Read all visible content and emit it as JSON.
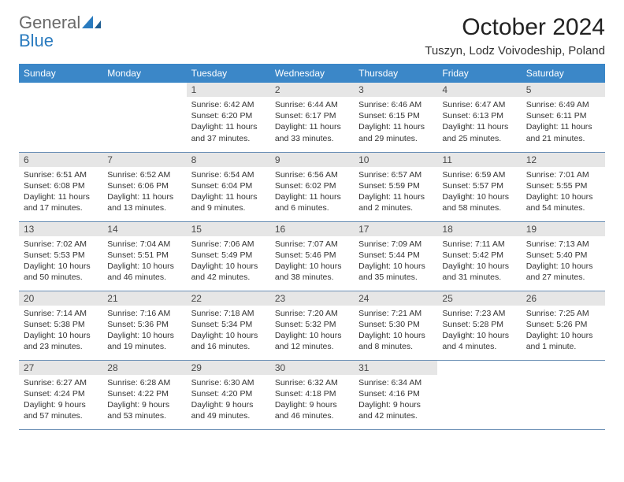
{
  "logo": {
    "general": "General",
    "blue": "Blue"
  },
  "title": "October 2024",
  "location": "Tuszyn, Lodz Voivodeship, Poland",
  "colors": {
    "header_bg": "#3b87c8",
    "header_text": "#ffffff",
    "daynum_bg": "#e6e6e6",
    "daynum_text": "#4a4a4a",
    "row_border": "#6a8fb5",
    "logo_gray": "#6a6a6a",
    "logo_blue": "#2a7bbf"
  },
  "weekdays": [
    "Sunday",
    "Monday",
    "Tuesday",
    "Wednesday",
    "Thursday",
    "Friday",
    "Saturday"
  ],
  "weeks": [
    [
      null,
      null,
      {
        "n": "1",
        "sr": "6:42 AM",
        "ss": "6:20 PM",
        "dl": "11 hours and 37 minutes."
      },
      {
        "n": "2",
        "sr": "6:44 AM",
        "ss": "6:17 PM",
        "dl": "11 hours and 33 minutes."
      },
      {
        "n": "3",
        "sr": "6:46 AM",
        "ss": "6:15 PM",
        "dl": "11 hours and 29 minutes."
      },
      {
        "n": "4",
        "sr": "6:47 AM",
        "ss": "6:13 PM",
        "dl": "11 hours and 25 minutes."
      },
      {
        "n": "5",
        "sr": "6:49 AM",
        "ss": "6:11 PM",
        "dl": "11 hours and 21 minutes."
      }
    ],
    [
      {
        "n": "6",
        "sr": "6:51 AM",
        "ss": "6:08 PM",
        "dl": "11 hours and 17 minutes."
      },
      {
        "n": "7",
        "sr": "6:52 AM",
        "ss": "6:06 PM",
        "dl": "11 hours and 13 minutes."
      },
      {
        "n": "8",
        "sr": "6:54 AM",
        "ss": "6:04 PM",
        "dl": "11 hours and 9 minutes."
      },
      {
        "n": "9",
        "sr": "6:56 AM",
        "ss": "6:02 PM",
        "dl": "11 hours and 6 minutes."
      },
      {
        "n": "10",
        "sr": "6:57 AM",
        "ss": "5:59 PM",
        "dl": "11 hours and 2 minutes."
      },
      {
        "n": "11",
        "sr": "6:59 AM",
        "ss": "5:57 PM",
        "dl": "10 hours and 58 minutes."
      },
      {
        "n": "12",
        "sr": "7:01 AM",
        "ss": "5:55 PM",
        "dl": "10 hours and 54 minutes."
      }
    ],
    [
      {
        "n": "13",
        "sr": "7:02 AM",
        "ss": "5:53 PM",
        "dl": "10 hours and 50 minutes."
      },
      {
        "n": "14",
        "sr": "7:04 AM",
        "ss": "5:51 PM",
        "dl": "10 hours and 46 minutes."
      },
      {
        "n": "15",
        "sr": "7:06 AM",
        "ss": "5:49 PM",
        "dl": "10 hours and 42 minutes."
      },
      {
        "n": "16",
        "sr": "7:07 AM",
        "ss": "5:46 PM",
        "dl": "10 hours and 38 minutes."
      },
      {
        "n": "17",
        "sr": "7:09 AM",
        "ss": "5:44 PM",
        "dl": "10 hours and 35 minutes."
      },
      {
        "n": "18",
        "sr": "7:11 AM",
        "ss": "5:42 PM",
        "dl": "10 hours and 31 minutes."
      },
      {
        "n": "19",
        "sr": "7:13 AM",
        "ss": "5:40 PM",
        "dl": "10 hours and 27 minutes."
      }
    ],
    [
      {
        "n": "20",
        "sr": "7:14 AM",
        "ss": "5:38 PM",
        "dl": "10 hours and 23 minutes."
      },
      {
        "n": "21",
        "sr": "7:16 AM",
        "ss": "5:36 PM",
        "dl": "10 hours and 19 minutes."
      },
      {
        "n": "22",
        "sr": "7:18 AM",
        "ss": "5:34 PM",
        "dl": "10 hours and 16 minutes."
      },
      {
        "n": "23",
        "sr": "7:20 AM",
        "ss": "5:32 PM",
        "dl": "10 hours and 12 minutes."
      },
      {
        "n": "24",
        "sr": "7:21 AM",
        "ss": "5:30 PM",
        "dl": "10 hours and 8 minutes."
      },
      {
        "n": "25",
        "sr": "7:23 AM",
        "ss": "5:28 PM",
        "dl": "10 hours and 4 minutes."
      },
      {
        "n": "26",
        "sr": "7:25 AM",
        "ss": "5:26 PM",
        "dl": "10 hours and 1 minute."
      }
    ],
    [
      {
        "n": "27",
        "sr": "6:27 AM",
        "ss": "4:24 PM",
        "dl": "9 hours and 57 minutes."
      },
      {
        "n": "28",
        "sr": "6:28 AM",
        "ss": "4:22 PM",
        "dl": "9 hours and 53 minutes."
      },
      {
        "n": "29",
        "sr": "6:30 AM",
        "ss": "4:20 PM",
        "dl": "9 hours and 49 minutes."
      },
      {
        "n": "30",
        "sr": "6:32 AM",
        "ss": "4:18 PM",
        "dl": "9 hours and 46 minutes."
      },
      {
        "n": "31",
        "sr": "6:34 AM",
        "ss": "4:16 PM",
        "dl": "9 hours and 42 minutes."
      },
      null,
      null
    ]
  ],
  "labels": {
    "sunrise": "Sunrise:",
    "sunset": "Sunset:",
    "daylight": "Daylight:"
  }
}
